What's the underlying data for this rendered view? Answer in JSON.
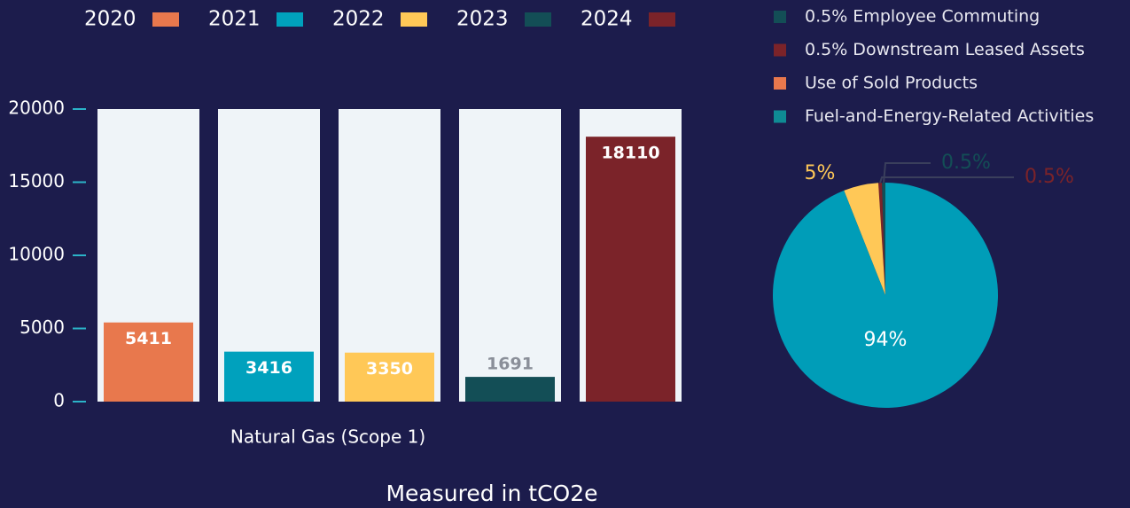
{
  "chart_data": [
    {
      "type": "bar",
      "categories": [
        "Natural Gas (Scope 1)"
      ],
      "series": [
        {
          "name": "2020",
          "color": "#e8784d",
          "values": [
            5411
          ]
        },
        {
          "name": "2021",
          "color": "#00a1bd",
          "values": [
            3416
          ]
        },
        {
          "name": "2022",
          "color": "#ffc857",
          "values": [
            3350
          ]
        },
        {
          "name": "2023",
          "color": "#134e56",
          "values": [
            1691
          ]
        },
        {
          "name": "2024",
          "color": "#7b2329",
          "values": [
            18110
          ]
        }
      ],
      "ylim": [
        0,
        20000
      ],
      "yticks": [
        0,
        5000,
        10000,
        15000,
        20000
      ],
      "legend": "top",
      "caption": "Measured in tCO2e"
    },
    {
      "type": "pie",
      "labels": [
        "0.5% Employee Commuting",
        "0.5% Downstream Leased Assets",
        "Use of Sold Products",
        "Fuel-and-Energy-Related Activities"
      ],
      "values": [
        0.5,
        0.5,
        5,
        94
      ],
      "value_labels": [
        "0.5%",
        "0.5%",
        "5%",
        "94%"
      ],
      "colors": [
        "#134e56",
        "#7b2329",
        "#ffc857",
        "#009db8"
      ],
      "legend_colors": [
        "#134e56",
        "#7b2329",
        "#e8784d",
        "#0f8b94"
      ]
    }
  ]
}
